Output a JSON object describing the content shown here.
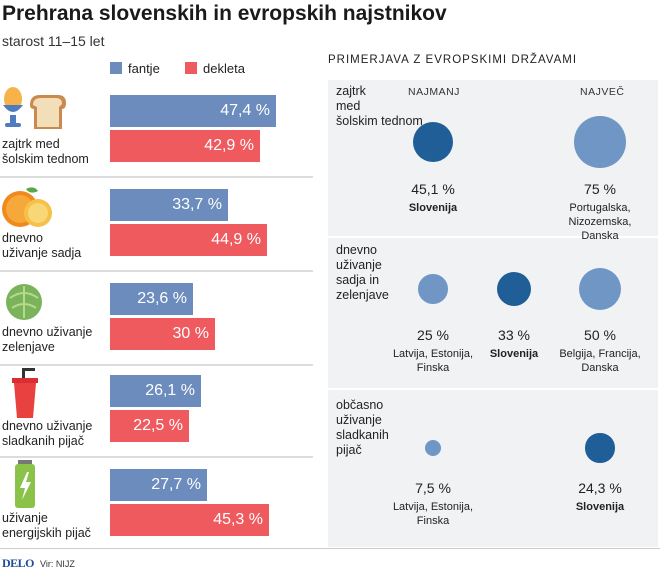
{
  "title": "Prehrana slovenskih in evropskih najstnikov",
  "subtitle": "starost 11–15 let",
  "legend": {
    "boys": "fantje",
    "girls": "dekleta"
  },
  "colors": {
    "boys": "#6b8cbc",
    "girls": "#ef5a5f",
    "bubble_light": "#7096c6",
    "bubble_dark": "#1f5e96"
  },
  "chart_data": [
    {
      "type": "bar",
      "categories": [
        "zajtrk med šolskim tednom",
        "dnevno uživanje sadja",
        "dnevno uživanje zelenjave",
        "dnevno uživanje sladkanih pijač",
        "uživanje energijskih pijač"
      ],
      "series": [
        {
          "name": "fantje",
          "values": [
            47.4,
            33.7,
            23.6,
            26.1,
            27.7
          ],
          "labels": [
            "47,4 %",
            "33,7 %",
            "23,6 %",
            "26,1 %",
            "27,7 %"
          ]
        },
        {
          "name": "dekleta",
          "values": [
            42.9,
            44.9,
            30,
            22.5,
            45.3
          ],
          "labels": [
            "42,9 %",
            "44,9 %",
            "30 %",
            "22,5 %",
            "45,3 %"
          ]
        }
      ],
      "unit": "%",
      "ylim": [
        0,
        50
      ]
    },
    {
      "type": "scatter",
      "title": "PRIMERJAVA Z EVROPSKIMI DRŽAVAMI",
      "column_headers": {
        "min": "NAJMANJ",
        "max": "NAJVEČ"
      },
      "groups": [
        {
          "label": "zajtrk med šolskim tednom",
          "points": [
            {
              "value": 45.1,
              "label": "45,1 %",
              "countries": "Slovenija",
              "slovenia": true
            },
            {
              "value": 75,
              "label": "75 %",
              "countries": "Portugalska, Nizozemska, Danska",
              "slovenia": false
            }
          ]
        },
        {
          "label": "dnevno uživanje sadja in zelenjave",
          "points": [
            {
              "value": 25,
              "label": "25 %",
              "countries": "Latvija, Estonija, Finska",
              "slovenia": false
            },
            {
              "value": 33,
              "label": "33 %",
              "countries": "Slovenija",
              "slovenia": true
            },
            {
              "value": 50,
              "label": "50 %",
              "countries": "Belgija, Francija, Danska",
              "slovenia": false
            }
          ]
        },
        {
          "label": "občasno uživanje sladkanih pijač",
          "points": [
            {
              "value": 7.5,
              "label": "7,5 %",
              "countries": "Latvija, Estonija, Finska",
              "slovenia": false
            },
            {
              "value": 24.3,
              "label": "24,3 %",
              "countries": "Slovenija",
              "slovenia": true
            }
          ]
        }
      ]
    }
  ],
  "icons": [
    "egg-cup-and-bread-icon",
    "orange-fruit-icon",
    "cabbage-icon",
    "soda-cup-icon",
    "energy-drink-can-icon"
  ],
  "footer": {
    "logo": "DELO",
    "source": "Vir: NIJZ"
  }
}
